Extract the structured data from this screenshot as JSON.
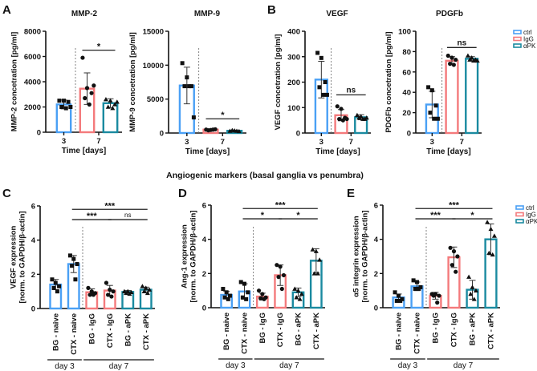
{
  "panels": {
    "A": "A",
    "B": "B",
    "C": "C",
    "D": "D",
    "E": "E"
  },
  "section_title": "Angiogenic markers (basal ganglia vs penumbra)",
  "legend": [
    {
      "label": "ctrl",
      "color": "#4aa0f5"
    },
    {
      "label": "IgG",
      "color": "#f47a7c"
    },
    {
      "label": "αPK",
      "color": "#1a8aa0"
    }
  ],
  "colors": {
    "ctrl": "#4aa0f5",
    "IgG": "#f47a7c",
    "aPK": "#1a8aa0"
  },
  "chart_data": [
    {
      "panel": "A",
      "type": "bar",
      "title": "MMP-2",
      "ylabel": [
        "MMP-2 concetration [pg/ml]"
      ],
      "xlabel": "Time [days]",
      "ylim": [
        0,
        8000
      ],
      "yticks": [
        "0",
        "2000",
        "4000",
        "6000",
        "8000"
      ],
      "x_groups": [
        {
          "label": "3",
          "bars": [
            0
          ]
        },
        {
          "label": "7",
          "bars": [
            1,
            2
          ]
        }
      ],
      "bars": [
        {
          "group": "ctrl",
          "value": 2200,
          "sd": 350,
          "points": [
            2500,
            2500,
            2400,
            2000,
            1900,
            2000
          ]
        },
        {
          "group": "IgG",
          "value": 3450,
          "sd": 1250,
          "points": [
            5900,
            3500,
            3100,
            2700,
            2200,
            3700
          ]
        },
        {
          "group": "aPK",
          "value": 2300,
          "sd": 350,
          "points": [
            2600,
            2500,
            2200,
            2000,
            1900,
            2400
          ]
        }
      ],
      "significance": [
        {
          "from": 1,
          "to": 2,
          "label": "*",
          "y": 6500
        }
      ]
    },
    {
      "panel": "A",
      "type": "bar",
      "title": "MMP-9",
      "ylabel": [
        "MMP-9 concetration [pg/ml]"
      ],
      "xlabel": "Time [days]",
      "ylim": [
        0,
        15000
      ],
      "yticks": [
        "0",
        "5000",
        "10000",
        "15000"
      ],
      "x_groups": [
        {
          "label": "3",
          "bars": [
            0
          ]
        },
        {
          "label": "7",
          "bars": [
            1,
            2
          ]
        }
      ],
      "bars": [
        {
          "group": "ctrl",
          "value": 7000,
          "sd": 2700,
          "points": [
            10300,
            8200,
            6900,
            6900,
            6900,
            2300
          ]
        },
        {
          "group": "IgG",
          "value": 500,
          "sd": 80,
          "points": [
            500,
            450,
            550,
            400,
            500
          ]
        },
        {
          "group": "aPK",
          "value": 330,
          "sd": 100,
          "points": [
            300,
            350,
            250,
            400,
            300
          ]
        }
      ],
      "significance": [
        {
          "from": 1,
          "to": 2,
          "label": "*",
          "y": 2100
        }
      ]
    },
    {
      "panel": "B",
      "type": "bar",
      "title": "VEGF",
      "ylabel": [
        "VEGF concetration [pg/ml]"
      ],
      "xlabel": "Time [days]",
      "ylim": [
        0,
        400
      ],
      "yticks": [
        "0",
        "100",
        "200",
        "300",
        "400"
      ],
      "x_groups": [
        {
          "label": "3",
          "bars": [
            0
          ]
        },
        {
          "label": "7",
          "bars": [
            1,
            2
          ]
        }
      ],
      "bars": [
        {
          "group": "ctrl",
          "value": 210,
          "sd": 72,
          "points": [
            315,
            295,
            200,
            180,
            150,
            150
          ]
        },
        {
          "group": "IgG",
          "value": 70,
          "sd": 22,
          "points": [
            105,
            95,
            60,
            55,
            50,
            55
          ]
        },
        {
          "group": "aPK",
          "value": 62,
          "sd": 10,
          "points": [
            70,
            65,
            55,
            60,
            55,
            60
          ]
        }
      ],
      "significance": [
        {
          "from": 1,
          "to": 2,
          "label": "ns",
          "y": 150
        }
      ]
    },
    {
      "panel": "B",
      "type": "bar",
      "title": "PDGFb",
      "ylabel": [
        "PDGFb concetration [pg/ml]"
      ],
      "xlabel": "Time [days]",
      "ylim": [
        0,
        100
      ],
      "yticks": [
        "0",
        "20",
        "40",
        "60",
        "80",
        "100"
      ],
      "x_groups": [
        {
          "label": "3",
          "bars": [
            0
          ]
        },
        {
          "label": "7",
          "bars": [
            1,
            2
          ]
        }
      ],
      "bars": [
        {
          "group": "ctrl",
          "value": 28,
          "sd": 13,
          "points": [
            45,
            42,
            27,
            20,
            14,
            14
          ]
        },
        {
          "group": "IgG",
          "value": 71,
          "sd": 4,
          "points": [
            76,
            74,
            72,
            68,
            67
          ]
        },
        {
          "group": "aPK",
          "value": 73,
          "sd": 2,
          "points": [
            76,
            74,
            72,
            72,
            71,
            71
          ]
        }
      ],
      "significance": [
        {
          "from": 1,
          "to": 2,
          "label": "ns",
          "y": 84
        }
      ]
    },
    {
      "panel": "C",
      "type": "bar",
      "title": "",
      "ylabel": [
        "VEGF expression",
        "[norm. to GAPDH/β-actin]"
      ],
      "ylim": [
        0,
        6
      ],
      "yticks": [
        "0",
        "2",
        "4",
        "6"
      ],
      "categories": [
        "BG - naive",
        "CTX - naive",
        "BG - IgG",
        "CTX - IgG",
        "BG - aPK",
        "CTX - aPK"
      ],
      "x_groups": [
        {
          "label": "day 3",
          "bars": [
            0,
            1
          ]
        },
        {
          "label": "day 7",
          "bars": [
            2,
            3,
            4,
            5
          ]
        }
      ],
      "bars": [
        {
          "group": "ctrl",
          "value": 1.4,
          "sd": 0.3,
          "points": [
            1.7,
            1.5,
            1.3,
            1.2,
            1.0
          ]
        },
        {
          "group": "ctrl",
          "value": 2.6,
          "sd": 0.5,
          "points": [
            3.1,
            2.9,
            2.6,
            2.5,
            1.7
          ]
        },
        {
          "group": "IgG",
          "value": 0.95,
          "sd": 0.2,
          "points": [
            1.2,
            1.0,
            0.9,
            0.8,
            0.8
          ]
        },
        {
          "group": "IgG",
          "value": 1.05,
          "sd": 0.3,
          "points": [
            1.5,
            1.1,
            1.0,
            0.8,
            0.7
          ]
        },
        {
          "group": "aPK",
          "value": 0.97,
          "sd": 0.08,
          "points": [
            1.0,
            1.0,
            0.95,
            0.9,
            0.85
          ]
        },
        {
          "group": "aPK",
          "value": 1.1,
          "sd": 0.15,
          "points": [
            1.3,
            1.2,
            1.1,
            1.0,
            0.9
          ]
        }
      ],
      "significance": [
        {
          "from": 1,
          "to": 3,
          "label": "***",
          "y": 5.2
        },
        {
          "from": 3,
          "to": 5,
          "label": "ns",
          "y": 5.2
        },
        {
          "from": 1,
          "to": 5,
          "label": "***",
          "y": 5.8
        }
      ]
    },
    {
      "panel": "D",
      "type": "bar",
      "title": "",
      "ylabel": [
        "Ang-1 expression",
        "[norm. to GAPDH/β-actin]"
      ],
      "ylim": [
        0,
        6
      ],
      "yticks": [
        "0",
        "2",
        "4",
        "6"
      ],
      "categories": [
        "BG - naive",
        "CTX - naive",
        "BG - IgG",
        "CTX - IgG",
        "BG - aPK",
        "CTX - aPK"
      ],
      "x_groups": [
        {
          "label": "day 3",
          "bars": [
            0,
            1
          ]
        },
        {
          "label": "day 7",
          "bars": [
            2,
            3,
            4,
            5
          ]
        }
      ],
      "bars": [
        {
          "group": "ctrl",
          "value": 0.75,
          "sd": 0.2,
          "points": [
            1.1,
            0.9,
            0.7,
            0.6,
            0.5
          ]
        },
        {
          "group": "ctrl",
          "value": 0.95,
          "sd": 0.45,
          "points": [
            1.5,
            1.4,
            0.9,
            0.6,
            0.5
          ]
        },
        {
          "group": "IgG",
          "value": 0.65,
          "sd": 0.2,
          "points": [
            1.0,
            0.8,
            0.6,
            0.55,
            0.5
          ]
        },
        {
          "group": "IgG",
          "value": 1.9,
          "sd": 0.6,
          "points": [
            2.5,
            2.4,
            1.9,
            1.8,
            1.1
          ]
        },
        {
          "group": "aPK",
          "value": 0.9,
          "sd": 0.25,
          "points": [
            1.1,
            1.0,
            0.8,
            0.6,
            0.5
          ]
        },
        {
          "group": "aPK",
          "value": 2.75,
          "sd": 0.7,
          "points": [
            3.4,
            3.3,
            2.8,
            2.0,
            2.0
          ]
        }
      ],
      "significance": [
        {
          "from": 1,
          "to": 3,
          "label": "*",
          "y": 5.2
        },
        {
          "from": 3,
          "to": 5,
          "label": "*",
          "y": 5.2
        },
        {
          "from": 1,
          "to": 5,
          "label": "***",
          "y": 5.8
        }
      ]
    },
    {
      "panel": "E",
      "type": "bar",
      "title": "",
      "ylabel": [
        "α5 integrin expression",
        "[norm. to GAPDH/β-actin]"
      ],
      "ylim": [
        0,
        6
      ],
      "yticks": [
        "0",
        "2",
        "4",
        "6"
      ],
      "categories": [
        "BG - naive",
        "CTX - naive",
        "BG - IgG",
        "CTX - IgG",
        "BG - aPK",
        "CTX - aPK"
      ],
      "x_groups": [
        {
          "label": "day 3",
          "bars": [
            0,
            1
          ]
        },
        {
          "label": "day 7",
          "bars": [
            2,
            3,
            4,
            5
          ]
        }
      ],
      "bars": [
        {
          "group": "ctrl",
          "value": 0.6,
          "sd": 0.2,
          "points": [
            0.9,
            0.7,
            0.5,
            0.4,
            0.4
          ]
        },
        {
          "group": "ctrl",
          "value": 1.25,
          "sd": 0.25,
          "points": [
            1.6,
            1.5,
            1.2,
            1.1,
            1.1
          ]
        },
        {
          "group": "IgG",
          "value": 0.7,
          "sd": 0.2,
          "points": [
            0.8,
            0.8,
            0.7,
            0.7,
            0.3
          ]
        },
        {
          "group": "IgG",
          "value": 2.95,
          "sd": 0.6,
          "points": [
            3.5,
            3.3,
            3.0,
            2.5,
            2.1
          ]
        },
        {
          "group": "aPK",
          "value": 1.05,
          "sd": 0.55,
          "points": [
            1.8,
            1.2,
            1.0,
            0.8,
            0.5
          ]
        },
        {
          "group": "aPK",
          "value": 4.0,
          "sd": 0.9,
          "points": [
            5.0,
            4.6,
            4.2,
            3.2,
            3.1
          ]
        }
      ],
      "significance": [
        {
          "from": 1,
          "to": 3,
          "label": "***",
          "y": 5.2
        },
        {
          "from": 3,
          "to": 5,
          "label": "*",
          "y": 5.2
        },
        {
          "from": 1,
          "to": 5,
          "label": "***",
          "y": 5.8
        }
      ]
    }
  ]
}
